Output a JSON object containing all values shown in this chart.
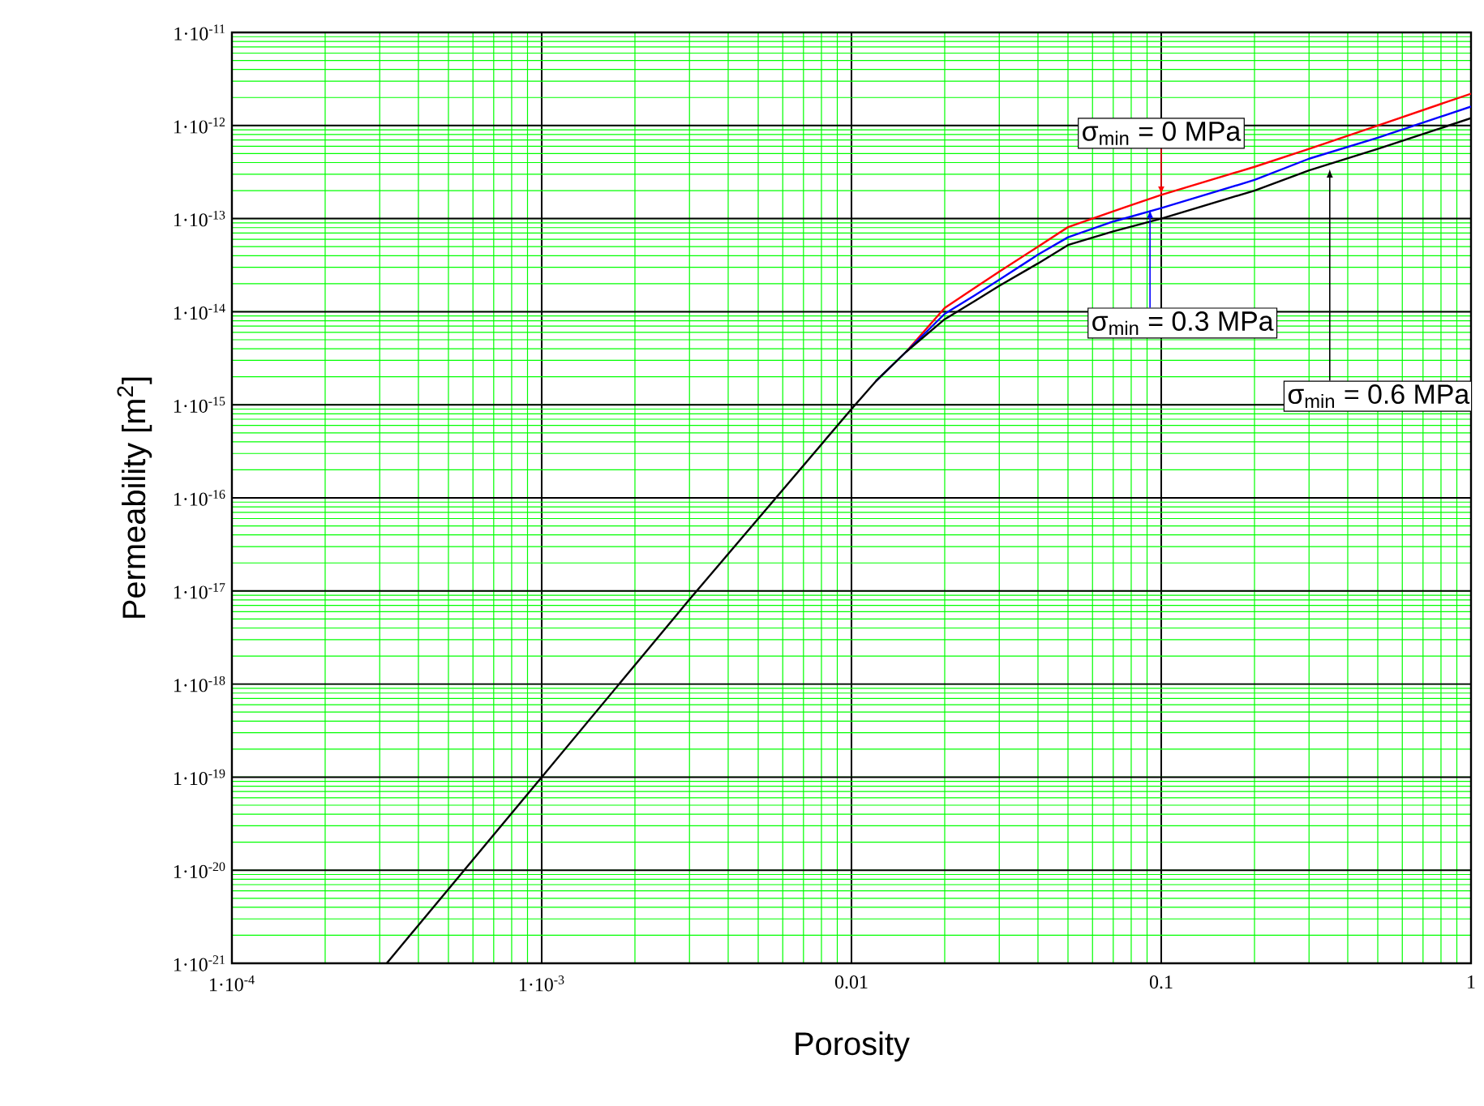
{
  "chart_data": {
    "type": "line",
    "xlabel": "Porosity",
    "ylabel": "Permeability [m$^{2}$]",
    "log": "xy",
    "grid": true,
    "xlim": [
      0.0001,
      1
    ],
    "ylim": [
      1e-21,
      1e-11
    ],
    "xticks": [
      {
        "value": 0.0001,
        "label": "1·10$^{-4}$"
      },
      {
        "value": 0.001,
        "label": "1·10$^{-3}$"
      },
      0.01,
      0.1,
      1
    ],
    "yticks": [
      {
        "value": 1e-21,
        "label": "1·10$^{-21}$"
      },
      {
        "value": 1e-20,
        "label": "1·10$^{-20}$"
      },
      {
        "value": 1e-19,
        "label": "1·10$^{-19}$"
      },
      {
        "value": 1e-18,
        "label": "1·10$^{-18}$"
      },
      {
        "value": 1e-17,
        "label": "1·10$^{-17}$"
      },
      {
        "value": 1e-16,
        "label": "1·10$^{-16}$"
      },
      {
        "value": 1e-15,
        "label": "1·10$^{-15}$"
      },
      {
        "value": 1e-14,
        "label": "1·10$^{-14}$"
      },
      {
        "value": 1e-13,
        "label": "1·10$^{-13}$"
      },
      {
        "value": 1e-12,
        "label": "1·10$^{-12}$"
      },
      {
        "value": 1e-11,
        "label": "1·10$^{-11}$"
      }
    ],
    "x": [
      0.000316,
      0.001,
      0.003,
      0.01,
      0.012,
      0.015,
      0.02,
      0.025,
      0.03,
      0.04,
      0.05,
      0.07,
      0.1,
      0.2,
      0.3,
      0.5,
      1
    ],
    "series": [
      {
        "color": "#ff0000",
        "values": [
          null,
          null,
          null,
          null,
          null,
          3.7e-15,
          1.1e-14,
          1.8e-14,
          2.7e-14,
          5e-14,
          8.1e-14,
          1.2e-13,
          1.8e-13,
          3.6e-13,
          5.6e-13,
          1e-12,
          2.2e-12
        ]
      },
      {
        "color": "#0000ff",
        "values": [
          null,
          null,
          null,
          null,
          1.8e-15,
          3.7e-15,
          9.5e-15,
          1.5e-14,
          2.2e-14,
          4.1e-14,
          6.3e-14,
          9.3e-14,
          1.3e-13,
          2.6e-13,
          4.4e-13,
          7.4e-13,
          1.6e-12
        ]
      },
      {
        "color": "#000000",
        "values": [
          1e-21,
          1e-19,
          8.1e-18,
          9e-16,
          1.8e-15,
          3.7e-15,
          8.3e-15,
          1.3e-14,
          1.9e-14,
          3.3e-14,
          5.2e-14,
          7.3e-14,
          1e-13,
          2e-13,
          3.3e-13,
          5.6e-13,
          1.2e-12
        ]
      }
    ],
    "annotations": [
      {
        "text": "σ$_{min}$ = 0 MPa",
        "x": 0.1,
        "y": 1.8e-13
      },
      {
        "text": "σ$_{min}$ = 0.3 MPa",
        "x": 0.092,
        "y": 1.25e-13
      },
      {
        "text": "σ$_{min}$ = 0.6 MPa",
        "x": 0.35,
        "y": 3.4e-13
      }
    ]
  }
}
